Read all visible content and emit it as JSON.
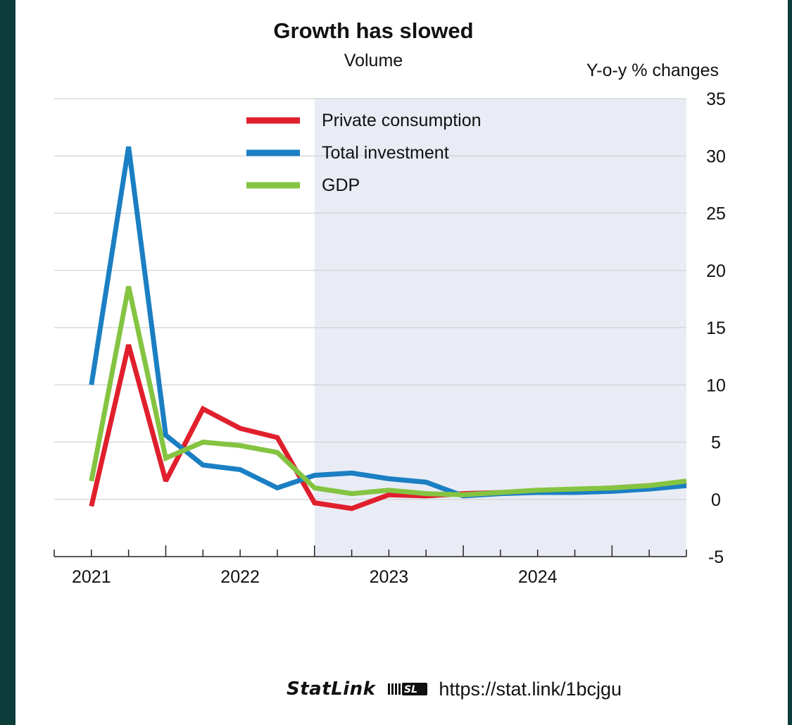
{
  "chart_data": {
    "type": "line",
    "title": "Growth has slowed",
    "subtitle": "Volume",
    "ylabel": "Y-o-y % changes",
    "ylim": [
      -5,
      35
    ],
    "yticks": [
      35,
      30,
      25,
      20,
      15,
      10,
      5,
      0,
      -5
    ],
    "x": [
      2020.5,
      2020.75,
      2021.0,
      2021.25,
      2021.5,
      2021.75,
      2022.0,
      2022.25,
      2022.5,
      2022.75,
      2023.0,
      2023.25,
      2023.5,
      2023.75,
      2024.0,
      2024.25,
      2024.5
    ],
    "xlim": [
      2020.25,
      2024.5
    ],
    "year_labels": [
      {
        "label": "2021",
        "x": 2021
      },
      {
        "label": "2022",
        "x": 2022
      },
      {
        "label": "2023",
        "x": 2023
      },
      {
        "label": "2024",
        "x": 2024
      }
    ],
    "projection_start": 2022.0,
    "grid": true,
    "legend_position": "top-center",
    "series": [
      {
        "name": "Private consumption",
        "color": "#e01f2d",
        "values": [
          -0.6,
          13.5,
          1.6,
          7.9,
          6.2,
          5.4,
          -0.3,
          -0.8,
          0.4,
          0.3,
          0.5,
          0.6,
          0.7,
          0.8,
          1.0,
          1.2,
          1.5
        ]
      },
      {
        "name": "Total investment",
        "color": "#1b7fc3",
        "values": [
          10.0,
          30.8,
          5.6,
          3.0,
          2.6,
          1.0,
          2.1,
          2.3,
          1.8,
          1.5,
          0.3,
          0.5,
          0.6,
          0.6,
          0.7,
          0.9,
          1.2
        ]
      },
      {
        "name": "GDP",
        "color": "#84c441",
        "values": [
          1.6,
          18.6,
          3.6,
          5.0,
          4.7,
          4.1,
          1.0,
          0.5,
          0.8,
          0.5,
          0.4,
          0.6,
          0.8,
          0.9,
          1.0,
          1.2,
          1.6
        ]
      }
    ]
  },
  "footer": {
    "statlink": "StatLink",
    "url": "https://stat.link/1bcjgu"
  }
}
